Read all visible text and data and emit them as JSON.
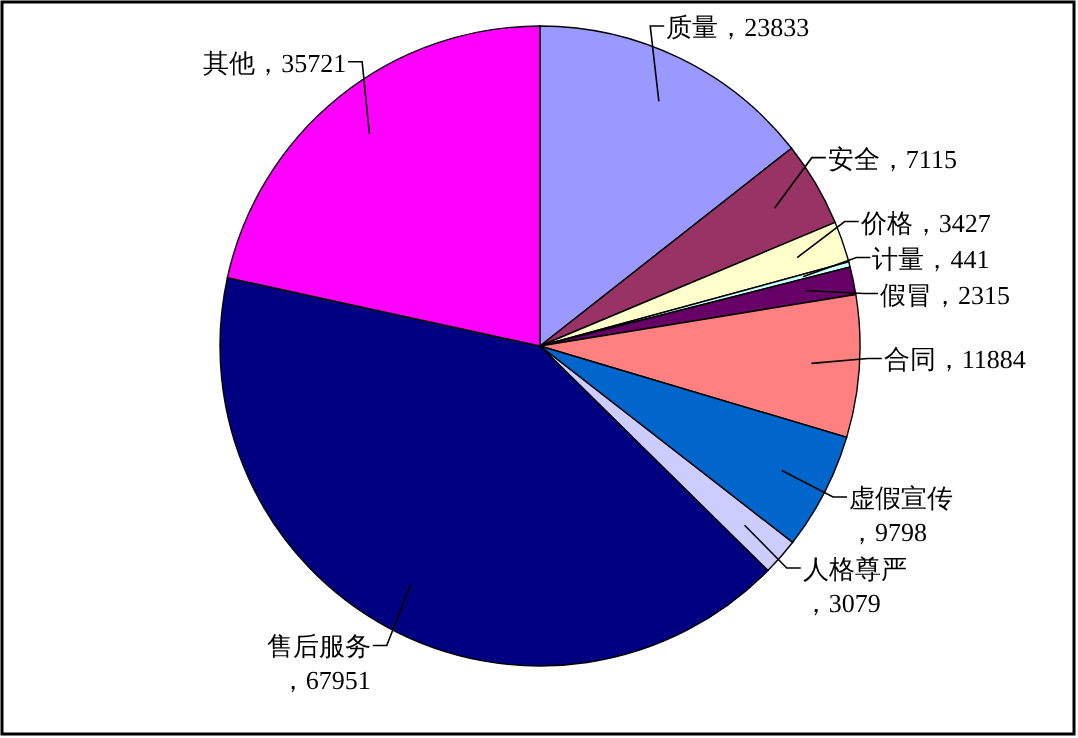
{
  "chart_data": {
    "type": "pie",
    "categories": [
      "质量",
      "安全",
      "价格",
      "计量",
      "假冒",
      "合同",
      "虚假宣传",
      "人格尊严",
      "售后服务",
      "其他"
    ],
    "values": [
      23833,
      7115,
      3427,
      441,
      2315,
      11884,
      9798,
      3079,
      67951,
      35721
    ],
    "value_labels": [
      "，23833",
      "，7115",
      "，3427",
      "，441",
      "，2315",
      "，11884",
      "，9798",
      "，3079",
      "，67951",
      "，35721"
    ],
    "colors": [
      "#9999ff",
      "#993366",
      "#ffffcc",
      "#ccffff",
      "#660066",
      "#ff8080",
      "#0066cc",
      "#ccccff",
      "#000080",
      "#ff00ff"
    ]
  }
}
